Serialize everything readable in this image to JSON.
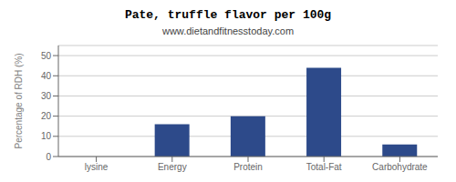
{
  "chart_data": {
    "type": "bar",
    "title": "Pate, truffle flavor per 100g",
    "subtitle": "www.dietandfitnesstoday.com",
    "categories": [
      "lysine",
      "Energy",
      "Protein",
      "Total-Fat",
      "Carbohydrate"
    ],
    "values": [
      0,
      16,
      20,
      44,
      6
    ],
    "color": "#2d4a8a",
    "ylabel": "Percentage of RDH (%)",
    "ylim": [
      0,
      55
    ],
    "yticks": [
      0,
      10,
      20,
      30,
      40,
      50
    ],
    "grid": true
  }
}
